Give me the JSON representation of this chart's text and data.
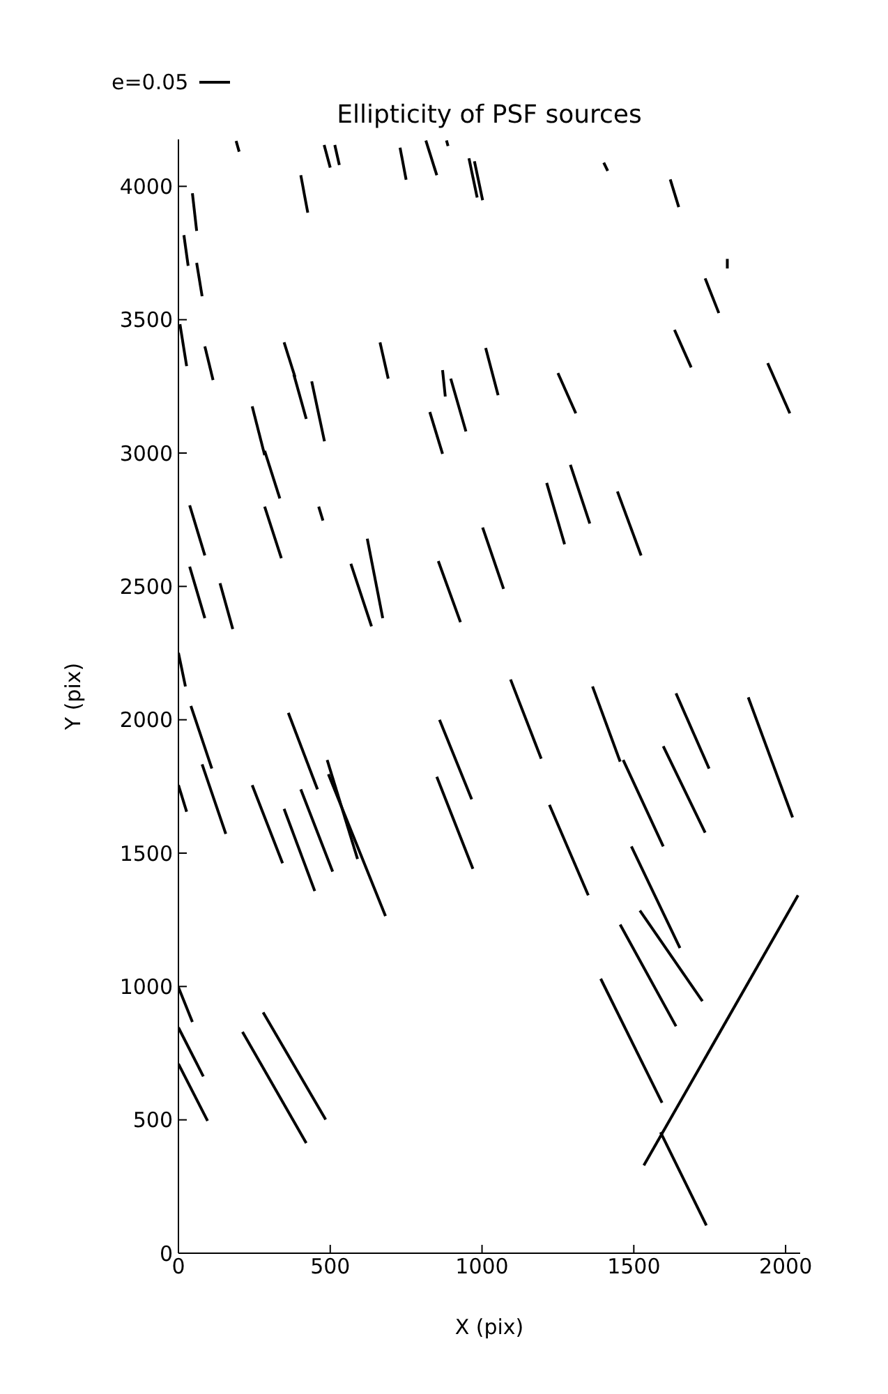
{
  "chart_data": {
    "type": "line",
    "title": "Ellipticity of PSF sources",
    "xlabel": "X (pix)",
    "ylabel": "Y (pix)",
    "annotations": [
      "e=0.05"
    ],
    "color": "#000000",
    "marker": "none",
    "line_style": "solid",
    "xlim": [
      0,
      2048
    ],
    "ylim": [
      0,
      4176
    ],
    "xticks": [
      0,
      500,
      1000,
      1500,
      2000
    ],
    "yticks": [
      0,
      500,
      1000,
      1500,
      2000,
      2500,
      3000,
      3500,
      4000
    ],
    "series": [
      {
        "x": [
          190,
          200
        ],
        "values": [
          4170,
          4130
        ]
      },
      {
        "x": [
          480,
          500
        ],
        "values": [
          4155,
          4070
        ]
      },
      {
        "x": [
          515,
          530
        ],
        "values": [
          4155,
          4080
        ]
      },
      {
        "x": [
          730,
          750
        ],
        "values": [
          4145,
          4025
        ]
      },
      {
        "x": [
          403,
          426
        ],
        "values": [
          4042,
          3901
        ]
      },
      {
        "x": [
          815,
          851
        ],
        "values": [
          4172,
          4042
        ]
      },
      {
        "x": [
          883,
          888
        ],
        "values": [
          4172,
          4151
        ]
      },
      {
        "x": [
          957,
          984
        ],
        "values": [
          4105,
          3958
        ]
      },
      {
        "x": [
          975,
          1002
        ],
        "values": [
          4094,
          3948
        ]
      },
      {
        "x": [
          1401,
          1414
        ],
        "values": [
          4089,
          4058
        ]
      },
      {
        "x": [
          1620,
          1648
        ],
        "values": [
          4026,
          3922
        ]
      },
      {
        "x": [
          46,
          60
        ],
        "values": [
          3974,
          3833
        ]
      },
      {
        "x": [
          18,
          32
        ],
        "values": [
          3817,
          3702
        ]
      },
      {
        "x": [
          60,
          78
        ],
        "values": [
          3713,
          3588
        ]
      },
      {
        "x": [
          1808,
          1808
        ],
        "values": [
          3728,
          3692
        ]
      },
      {
        "x": [
          1735,
          1780
        ],
        "values": [
          3655,
          3525
        ]
      },
      {
        "x": [
          5,
          27
        ],
        "values": [
          3483,
          3326
        ]
      },
      {
        "x": [
          87,
          114
        ],
        "values": [
          3400,
          3274
        ]
      },
      {
        "x": [
          348,
          384
        ],
        "values": [
          3415,
          3285
        ]
      },
      {
        "x": [
          1634,
          1689
        ],
        "values": [
          3462,
          3321
        ]
      },
      {
        "x": [
          1012,
          1053
        ],
        "values": [
          3394,
          3217
        ]
      },
      {
        "x": [
          664,
          691
        ],
        "values": [
          3415,
          3279
        ]
      },
      {
        "x": [
          380,
          421
        ],
        "values": [
          3295,
          3128
        ]
      },
      {
        "x": [
          439,
          481
        ],
        "values": [
          3269,
          3044
        ]
      },
      {
        "x": [
          870,
          879
        ],
        "values": [
          3311,
          3212
        ]
      },
      {
        "x": [
          897,
          947
        ],
        "values": [
          3279,
          3081
        ]
      },
      {
        "x": [
          1250,
          1309
        ],
        "values": [
          3300,
          3149
        ]
      },
      {
        "x": [
          1941,
          2014
        ],
        "values": [
          3337,
          3149
        ]
      },
      {
        "x": [
          243,
          284
        ],
        "values": [
          3175,
          2992
        ]
      },
      {
        "x": [
          828,
          870
        ],
        "values": [
          3154,
          2997
        ]
      },
      {
        "x": [
          284,
          334
        ],
        "values": [
          3008,
          2830
        ]
      },
      {
        "x": [
          1291,
          1355
        ],
        "values": [
          2956,
          2736
        ]
      },
      {
        "x": [
          1213,
          1272
        ],
        "values": [
          2888,
          2658
        ]
      },
      {
        "x": [
          1446,
          1524
        ],
        "values": [
          2856,
          2616
        ]
      },
      {
        "x": [
          284,
          339
        ],
        "values": [
          2799,
          2606
        ]
      },
      {
        "x": [
          462,
          476
        ],
        "values": [
          2799,
          2747
        ]
      },
      {
        "x": [
          37,
          87
        ],
        "values": [
          2804,
          2616
        ]
      },
      {
        "x": [
          622,
          673
        ],
        "values": [
          2679,
          2381
        ]
      },
      {
        "x": [
          1002,
          1071
        ],
        "values": [
          2721,
          2491
        ]
      },
      {
        "x": [
          856,
          929
        ],
        "values": [
          2595,
          2366
        ]
      },
      {
        "x": [
          37,
          87
        ],
        "values": [
          2574,
          2381
        ]
      },
      {
        "x": [
          137,
          179
        ],
        "values": [
          2512,
          2340
        ]
      },
      {
        "x": [
          568,
          636
        ],
        "values": [
          2585,
          2350
        ]
      },
      {
        "x": [
          0,
          23
        ],
        "values": [
          2251,
          2125
        ]
      },
      {
        "x": [
          1094,
          1195
        ],
        "values": [
          2151,
          1854
        ]
      },
      {
        "x": [
          1364,
          1455
        ],
        "values": [
          2125,
          1843
        ]
      },
      {
        "x": [
          41,
          110
        ],
        "values": [
          2052,
          1817
        ]
      },
      {
        "x": [
          362,
          458
        ],
        "values": [
          2026,
          1739
        ]
      },
      {
        "x": [
          860,
          966
        ],
        "values": [
          2000,
          1702
        ]
      },
      {
        "x": [
          1639,
          1748
        ],
        "values": [
          2099,
          1817
        ]
      },
      {
        "x": [
          1877,
          2023
        ],
        "values": [
          2084,
          1634
        ]
      },
      {
        "x": [
          1465,
          1597
        ],
        "values": [
          1849,
          1525
        ]
      },
      {
        "x": [
          78,
          156
        ],
        "values": [
          1833,
          1572
        ]
      },
      {
        "x": [
          0,
          27
        ],
        "values": [
          1755,
          1655
        ]
      },
      {
        "x": [
          243,
          343
        ],
        "values": [
          1755,
          1462
        ]
      },
      {
        "x": [
          348,
          449
        ],
        "values": [
          1666,
          1358
        ]
      },
      {
        "x": [
          403,
          508
        ],
        "values": [
          1739,
          1431
        ]
      },
      {
        "x": [
          490,
          590
        ],
        "values": [
          1849,
          1478
        ]
      },
      {
        "x": [
          494,
          682
        ],
        "values": [
          1796,
          1264
        ]
      },
      {
        "x": [
          851,
          970
        ],
        "values": [
          1786,
          1441
        ]
      },
      {
        "x": [
          1222,
          1350
        ],
        "values": [
          1681,
          1342
        ]
      },
      {
        "x": [
          1492,
          1652
        ],
        "values": [
          1525,
          1144
        ]
      },
      {
        "x": [
          1597,
          1735
        ],
        "values": [
          1901,
          1577
        ]
      },
      {
        "x": [
          1520,
          1726
        ],
        "values": [
          1285,
          945
        ]
      },
      {
        "x": [
          1455,
          1639
        ],
        "values": [
          1232,
          851
        ]
      },
      {
        "x": [
          0,
          46
        ],
        "values": [
          997,
          867
        ]
      },
      {
        "x": [
          0,
          82
        ],
        "values": [
          846,
          663
        ]
      },
      {
        "x": [
          0,
          96
        ],
        "values": [
          710,
          496
        ]
      },
      {
        "x": [
          1391,
          1593
        ],
        "values": [
          1029,
          564
        ]
      },
      {
        "x": [
          279,
          485
        ],
        "values": [
          903,
          501
        ]
      },
      {
        "x": [
          211,
          421
        ],
        "values": [
          830,
          413
        ]
      },
      {
        "x": [
          1533,
          2041
        ],
        "values": [
          329,
          1342
        ]
      },
      {
        "x": [
          1588,
          1739
        ],
        "values": [
          454,
          104
        ]
      }
    ]
  }
}
